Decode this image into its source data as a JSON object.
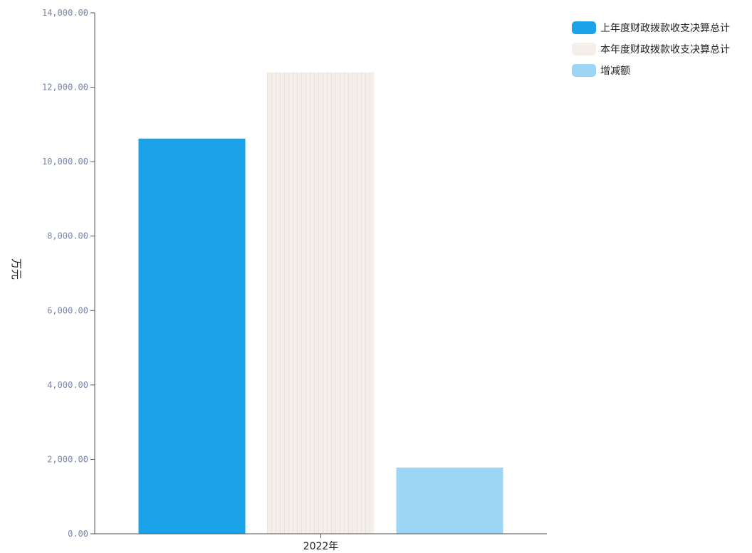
{
  "chart_data": {
    "type": "bar",
    "categories": [
      "2022年"
    ],
    "series": [
      {
        "name": "上年度财政拨款收支决算总计",
        "values": [
          10620
        ],
        "color": "#1aa3e8"
      },
      {
        "name": "本年度财政拨款收支决算总计",
        "values": [
          12400
        ],
        "color": "#f4efe9"
      },
      {
        "name": "增减额",
        "values": [
          1780
        ],
        "color": "#9dd5f5"
      }
    ],
    "ylabel": "万元",
    "xlabel": "",
    "ylim": [
      0,
      14000
    ],
    "yticks": [
      "0.00",
      "2,000.00",
      "4,000.00",
      "6,000.00",
      "8,000.00",
      "10,000.00",
      "12,000.00",
      "14,000.00"
    ],
    "legend_position": "top-right",
    "grid": false
  }
}
